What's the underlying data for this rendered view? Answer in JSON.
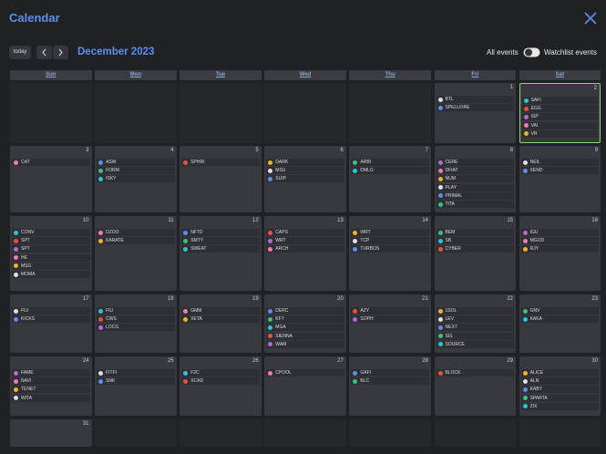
{
  "header": {
    "title": "Calendar"
  },
  "toolbar": {
    "today": "today",
    "month": "December 2023",
    "all_events": "All events",
    "watchlist_events": "Watchlist events"
  },
  "weekdays": [
    "Sun",
    "Mon",
    "Tue",
    "Wed",
    "Thu",
    "Fri",
    "Sat"
  ],
  "weeks": [
    [
      null,
      null,
      null,
      null,
      null,
      {
        "day": "1",
        "events": [
          "BTL",
          "SPELLFIRE"
        ]
      },
      {
        "day": "2",
        "events": [
          "SAFI",
          "EGG",
          "ISP",
          "VAI",
          "VR"
        ]
      }
    ],
    [
      {
        "day": "3",
        "events": [
          "CAT"
        ]
      },
      {
        "day": "4",
        "events": [
          "ASW",
          "FORM",
          "ISKY"
        ]
      },
      {
        "day": "5",
        "events": [
          "SPHRI"
        ]
      },
      {
        "day": "6",
        "events": [
          "DARK",
          "MSU",
          "SUIP"
        ]
      },
      {
        "day": "7",
        "events": [
          "ARBI",
          "DMLG"
        ]
      },
      {
        "day": "8",
        "events": [
          "CERE",
          "DFIAT",
          "NUM",
          "PLAY",
          "PRIMAL",
          "TITA"
        ]
      },
      {
        "day": "9",
        "events": [
          "NEIL",
          "XEND"
        ]
      }
    ],
    [
      {
        "day": "10",
        "events": [
          "CONV",
          "SPT",
          "SPT",
          "HE",
          "MSG",
          "MOMA"
        ]
      },
      {
        "day": "11",
        "events": [
          "DZOO",
          "KARATE"
        ]
      },
      {
        "day": "12",
        "events": [
          "NFTD",
          "SMTY",
          "SWEAT"
        ]
      },
      {
        "day": "13",
        "events": [
          "CAPS",
          "WRT",
          "ARCH"
        ]
      },
      {
        "day": "14",
        "events": [
          "WRT",
          "TCP",
          "TURBOS"
        ]
      },
      {
        "day": "15",
        "events": [
          "BEM",
          "SB",
          "CYBER"
        ]
      },
      {
        "day": "16",
        "events": [
          "IGU",
          "MGOD",
          "RJY"
        ]
      }
    ],
    [
      {
        "day": "17",
        "events": [
          "FIU",
          "KICKS"
        ]
      },
      {
        "day": "18",
        "events": [
          "FIU",
          "CWS",
          "LOCG"
        ]
      },
      {
        "day": "19",
        "events": [
          "GMM",
          "XETA"
        ]
      },
      {
        "day": "20",
        "events": [
          "DERC",
          "KFT",
          "MGA",
          "SIENNA",
          "WAM"
        ]
      },
      {
        "day": "21",
        "events": [
          "AZY",
          "SOPH"
        ]
      },
      {
        "day": "22",
        "events": [
          "1SOL",
          "LEV",
          "NEXT",
          "SIS",
          "SOURCE"
        ]
      },
      {
        "day": "23",
        "events": [
          "GNV",
          "KAKA"
        ]
      }
    ],
    [
      {
        "day": "24",
        "events": [
          "FAME",
          "NAVI",
          "TENET",
          "WITA"
        ]
      },
      {
        "day": "25",
        "events": [
          "FITFI",
          "SNK"
        ]
      },
      {
        "day": "26",
        "events": [
          "F2C",
          "XCAD"
        ]
      },
      {
        "day": "27",
        "events": [
          "CPOOL"
        ]
      },
      {
        "day": "28",
        "events": [
          "GAFI",
          "BLC"
        ]
      },
      {
        "day": "29",
        "events": [
          "BLOCK"
        ]
      },
      {
        "day": "30",
        "events": [
          "ALICE",
          "ALN",
          "KABY",
          "SPARTA",
          "ZIX"
        ]
      }
    ],
    [
      {
        "day": "31",
        "events": []
      },
      null,
      null,
      null,
      null,
      null,
      null
    ]
  ]
}
